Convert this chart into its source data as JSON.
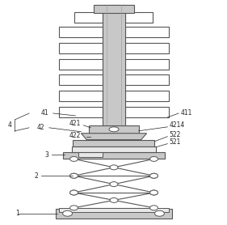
{
  "figsize": [
    2.81,
    2.78
  ],
  "dpi": 100,
  "line_color": "#555555",
  "gray_fill": "#c8c8c8",
  "white_fill": "#ffffff",
  "light_gray": "#e8e8e8"
}
